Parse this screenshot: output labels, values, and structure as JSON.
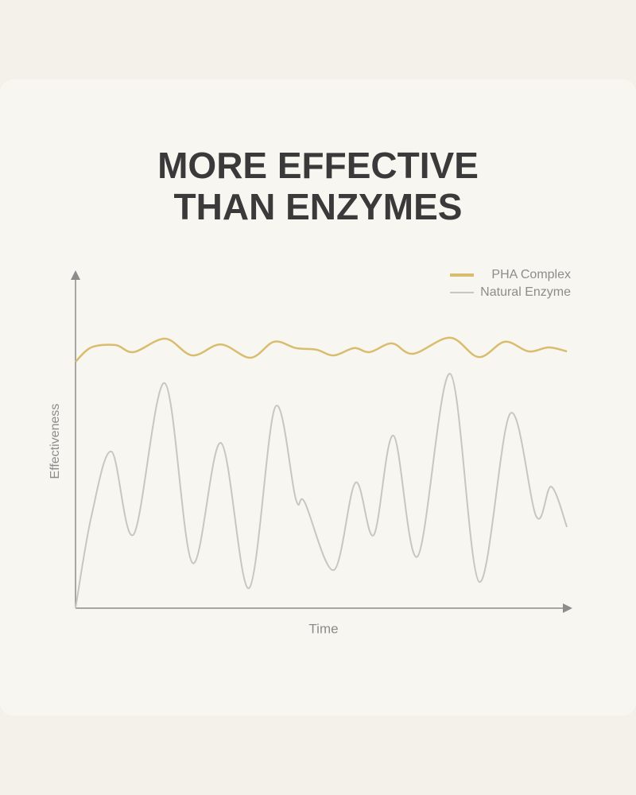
{
  "chart_data": {
    "type": "line",
    "title": "MORE EFFECTIVE",
    "subtitle": "THAN ENZYMES",
    "x_label": "Time",
    "y_label": "Effectiveness",
    "xlim": [
      0,
      100
    ],
    "ylim": [
      0,
      100
    ],
    "series": [
      {
        "name": "PHA Complex",
        "color": "#d9bd6e",
        "x": [
          0,
          3.2,
          8.1,
          11.8,
          18.2,
          23.7,
          29.5,
          35.5,
          40.3,
          44.7,
          48.9,
          52.4,
          56.5,
          59.7,
          64.2,
          68.5,
          76,
          81.8,
          87.1,
          91.9,
          96,
          99.7
        ],
        "values": [
          73.8,
          78.1,
          78.8,
          76.7,
          80.7,
          75.7,
          79,
          75,
          79.8,
          77.9,
          77.4,
          75.7,
          77.9,
          76.7,
          79.3,
          76.2,
          81,
          75.2,
          79.8,
          76.9,
          78.1,
          76.9
        ]
      },
      {
        "name": "Natural Enzyme",
        "color": "#c8c6c0",
        "x": [
          0,
          3.2,
          7.3,
          11.8,
          18.1,
          23.7,
          29.5,
          35.2,
          40.5,
          44.7,
          46.5,
          52.4,
          56.8,
          60.5,
          64.5,
          69.4,
          76,
          81.9,
          88.2,
          93.5,
          96.5,
          99.7
        ],
        "values": [
          0,
          27.4,
          46.9,
          22.1,
          67.4,
          13.6,
          49.5,
          6,
          60.2,
          32.6,
          31.7,
          11.4,
          37.6,
          21.9,
          51.7,
          15.5,
          70.2,
          7.9,
          58.3,
          27.4,
          36.4,
          24.3
        ]
      }
    ]
  }
}
